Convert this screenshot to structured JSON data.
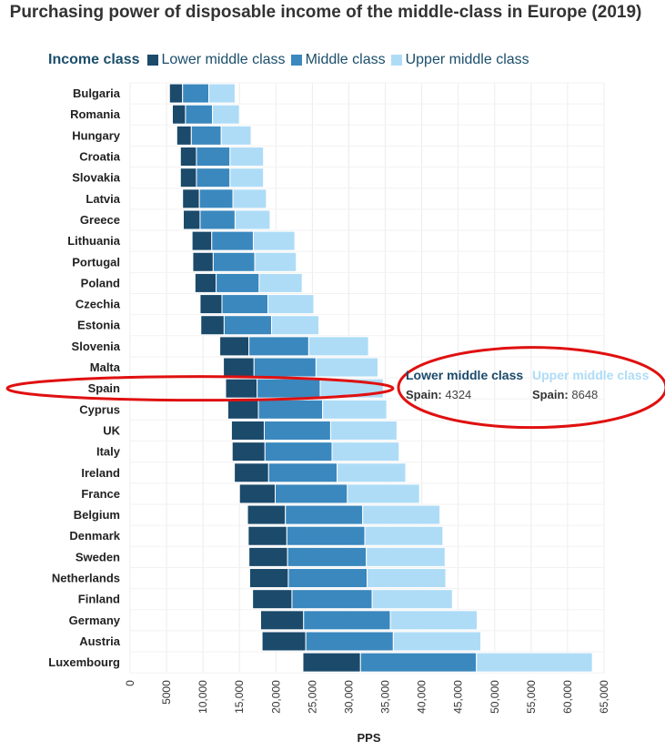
{
  "title": "Purchasing power of disposable income of the middle-class in Europe (2019)",
  "legend": {
    "title": "Income class",
    "items": [
      {
        "label": "Lower middle class",
        "color": "#1b4a6b"
      },
      {
        "label": "Middle class",
        "color": "#3a88be"
      },
      {
        "label": "Upper middle class",
        "color": "#aedcf7"
      }
    ]
  },
  "tooltip": {
    "lower": {
      "title": "Lower middle class",
      "country": "Spain:",
      "value": "4324",
      "color": "#1b4a6b"
    },
    "upper": {
      "title": "Upper middle class",
      "country": "Spain:",
      "value": "8648",
      "color": "#aedcf7"
    }
  },
  "highlight_category": "Spain",
  "chart_data": {
    "type": "bar",
    "orientation": "horizontal",
    "stacked": "floating",
    "title": "Purchasing power of disposable income of the middle-class in Europe (2019)",
    "xlabel": "PPS",
    "ylabel": "",
    "xlim": [
      0,
      65000
    ],
    "xticks": [
      "0",
      "5000",
      "10,000",
      "15,000",
      "20,000",
      "25,000",
      "30,000",
      "35,000",
      "40,000",
      "45,000",
      "50,000",
      "55,000",
      "60,000",
      "65,000"
    ],
    "categories": [
      "Bulgaria",
      "Romania",
      "Hungary",
      "Croatia",
      "Slovakia",
      "Latvia",
      "Greece",
      "Lithuania",
      "Portugal",
      "Poland",
      "Czechia",
      "Estonia",
      "Slovenia",
      "Malta",
      "Spain",
      "Cyprus",
      "UK",
      "Italy",
      "Ireland",
      "France",
      "Belgium",
      "Denmark",
      "Sweden",
      "Netherlands",
      "Finland",
      "Germany",
      "Austria",
      "Luxembourg"
    ],
    "start": [
      5400,
      5800,
      6400,
      6900,
      6900,
      7200,
      7300,
      8500,
      8600,
      8900,
      9600,
      9700,
      12300,
      12800,
      13100,
      13400,
      13900,
      14000,
      14300,
      15000,
      16100,
      16200,
      16300,
      16400,
      16800,
      17900,
      18100,
      23700
    ],
    "series": [
      {
        "name": "Lower middle class",
        "values": [
          1800,
          1800,
          2000,
          2200,
          2200,
          2300,
          2300,
          2700,
          2800,
          2900,
          3000,
          3200,
          4000,
          4200,
          4324,
          4200,
          4500,
          4500,
          4700,
          4900,
          5200,
          5300,
          5300,
          5300,
          5400,
          5900,
          6000,
          7900
        ]
      },
      {
        "name": "Middle class",
        "values": [
          3600,
          3700,
          4100,
          4600,
          4600,
          4600,
          4800,
          5700,
          5700,
          5900,
          6300,
          6500,
          8200,
          8500,
          8648,
          8800,
          9100,
          9200,
          9400,
          9900,
          10600,
          10700,
          10800,
          10800,
          11000,
          11900,
          12000,
          15900
        ]
      },
      {
        "name": "Upper middle class",
        "values": [
          3600,
          3700,
          4100,
          4600,
          4600,
          4600,
          4800,
          5700,
          5700,
          5900,
          6300,
          6500,
          8200,
          8500,
          8648,
          8800,
          9100,
          9200,
          9400,
          9900,
          10600,
          10700,
          10800,
          10800,
          11000,
          11900,
          12000,
          15900
        ]
      }
    ]
  }
}
